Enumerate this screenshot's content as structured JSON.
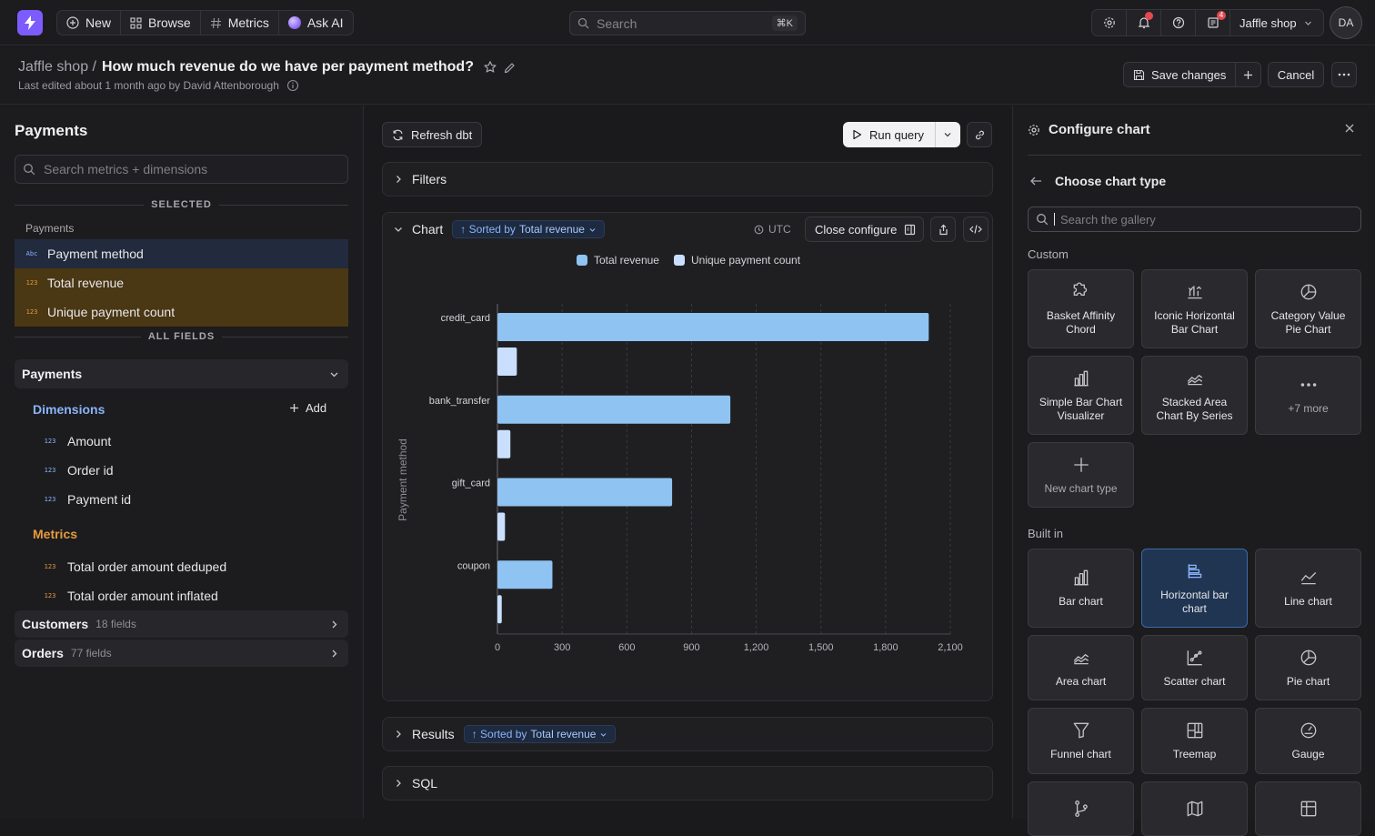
{
  "topbar": {
    "nav": [
      {
        "label": "New",
        "icon": "plus-circle-icon"
      },
      {
        "label": "Browse",
        "icon": "grid-icon"
      },
      {
        "label": "Metrics",
        "icon": "hash-icon"
      },
      {
        "label": "Ask AI",
        "icon": "ai-orb-icon"
      }
    ],
    "search_placeholder": "Search",
    "search_shortcut": "⌘K",
    "notifications_badge": "4",
    "org_name": "Jaffle shop",
    "avatar_initials": "DA"
  },
  "header": {
    "breadcrumb": "Jaffle shop /",
    "title": "How much revenue do we have per payment method?",
    "last_edited": "Last edited about 1 month ago by David Attenborough",
    "save_label": "Save changes",
    "cancel_label": "Cancel"
  },
  "sidebar": {
    "title": "Payments",
    "search_placeholder": "Search metrics + dimensions",
    "selected_label": "SELECTED",
    "selected_table": "Payments",
    "selected": [
      {
        "tag": "Abc",
        "label": "Payment method",
        "kind": "dimension"
      },
      {
        "tag": "123",
        "label": "Total revenue",
        "kind": "metric"
      },
      {
        "tag": "123",
        "label": "Unique payment count",
        "kind": "metric"
      }
    ],
    "all_fields_label": "ALL FIELDS",
    "group": "Payments",
    "dimensions_label": "Dimensions",
    "add_label": "Add",
    "dimensions": [
      {
        "tag": "123",
        "label": "Amount"
      },
      {
        "tag": "123",
        "label": "Order id"
      },
      {
        "tag": "123",
        "label": "Payment id"
      }
    ],
    "metrics_label": "Metrics",
    "metrics": [
      {
        "tag": "123",
        "label": "Total order amount deduped"
      },
      {
        "tag": "123",
        "label": "Total order amount inflated"
      }
    ],
    "other_tables": [
      {
        "name": "Customers",
        "count": "18 fields"
      },
      {
        "name": "Orders",
        "count": "77 fields"
      }
    ]
  },
  "center": {
    "refresh_label": "Refresh dbt",
    "run_label": "Run query",
    "filters_label": "Filters",
    "chart_label": "Chart",
    "sort_prefix": "↑ Sorted by",
    "sort_field": "Total revenue",
    "timezone": "UTC",
    "close_configure_label": "Close configure",
    "results_label": "Results",
    "sql_label": "SQL"
  },
  "chart_data": {
    "type": "bar",
    "orientation": "horizontal",
    "categories": [
      "credit_card",
      "bank_transfer",
      "gift_card",
      "coupon"
    ],
    "series": [
      {
        "name": "Total revenue",
        "values": [
          2000,
          1080,
          810,
          255
        ],
        "color": "#8fc3f2"
      },
      {
        "name": "Unique payment count",
        "values": [
          90,
          60,
          35,
          20
        ],
        "color": "#c9dffd"
      }
    ],
    "ylabel": "Payment method",
    "xticks": [
      "0",
      "300",
      "600",
      "900",
      "1,200",
      "1,500",
      "1,800",
      "2,100"
    ],
    "xlim": [
      0,
      2100
    ],
    "grid": true,
    "legend": "top-center"
  },
  "configure": {
    "title": "Configure chart",
    "choose_label": "Choose chart type",
    "gallery_placeholder": "Search the gallery",
    "custom_label": "Custom",
    "custom": [
      {
        "label": "Basket Affinity\nChord",
        "icon": "puzzle-icon"
      },
      {
        "label": "Iconic Horizontal\nBar Chart",
        "icon": "iconic-bar-icon"
      },
      {
        "label": "Category Value\nPie Chart",
        "icon": "pie-icon"
      },
      {
        "label": "Simple Bar Chart\nVisualizer",
        "icon": "bar-chart-icon"
      },
      {
        "label": "Stacked Area\nChart By Series",
        "icon": "area-chart-icon"
      },
      {
        "label": "+7 more",
        "icon": "dots-icon"
      },
      {
        "label": "New chart type",
        "icon": "plus-icon"
      }
    ],
    "builtin_label": "Built in",
    "builtin": [
      {
        "label": "Bar chart",
        "icon": "bar-chart-icon"
      },
      {
        "label": "Horizontal bar\nchart",
        "icon": "horizontal-bar-icon",
        "selected": true
      },
      {
        "label": "Line chart",
        "icon": "line-chart-icon"
      },
      {
        "label": "Area chart",
        "icon": "area-chart-icon"
      },
      {
        "label": "Scatter chart",
        "icon": "scatter-chart-icon"
      },
      {
        "label": "Pie chart",
        "icon": "pie-icon"
      },
      {
        "label": "Funnel chart",
        "icon": "funnel-icon"
      },
      {
        "label": "Treemap",
        "icon": "treemap-icon"
      },
      {
        "label": "Gauge",
        "icon": "gauge-icon"
      },
      {
        "label": "",
        "icon": "git-branch-icon"
      },
      {
        "label": "",
        "icon": "map-icon"
      },
      {
        "label": "",
        "icon": "table-icon"
      }
    ]
  }
}
